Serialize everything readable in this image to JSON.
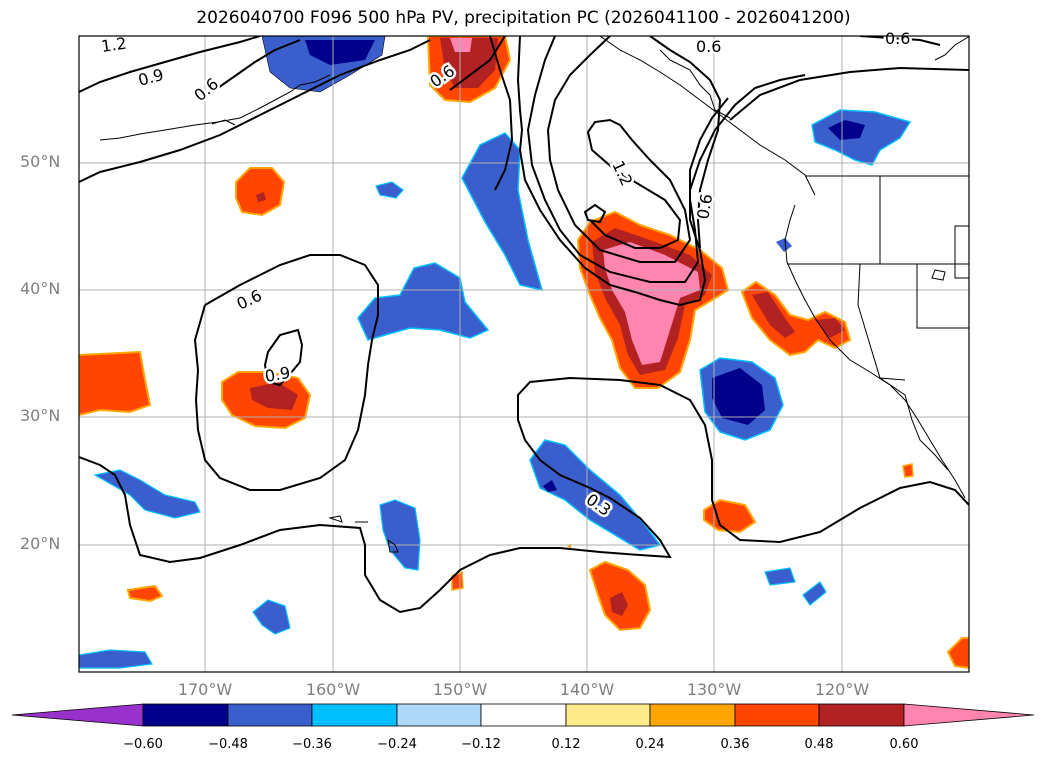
{
  "title": "2026040700 F096 500 hPa PV, precipitation PC (2026041100 - 2026041200)",
  "lat_labels": [
    "50°N",
    "40°N",
    "30°N",
    "20°N"
  ],
  "lon_labels": [
    "170°W",
    "160°W",
    "150°W",
    "140°W",
    "130°W",
    "120°W"
  ],
  "contour_labels": [
    "1.2",
    "0.9",
    "0.6",
    "0.6",
    "1.2",
    "0.6",
    "0.6",
    "0.6",
    "0.9",
    "0.3",
    "0.6"
  ],
  "colorbar": {
    "tick_labels": [
      "−0.60",
      "−0.48",
      "−0.36",
      "−0.24",
      "−0.12",
      "0.12",
      "0.24",
      "0.36",
      "0.48",
      "0.60"
    ],
    "colors": [
      "#9932cc",
      "#00008b",
      "#3a5fcd",
      "#00bfff",
      "#add8f7",
      "#ffffff",
      "#ffeb8c",
      "#ffa500",
      "#ff4500",
      "#b22222",
      "#ff85b0"
    ]
  },
  "colors": {
    "land_outline": "#000000",
    "grid": "#b0b0b0",
    "pv_contour": "#000000"
  }
}
